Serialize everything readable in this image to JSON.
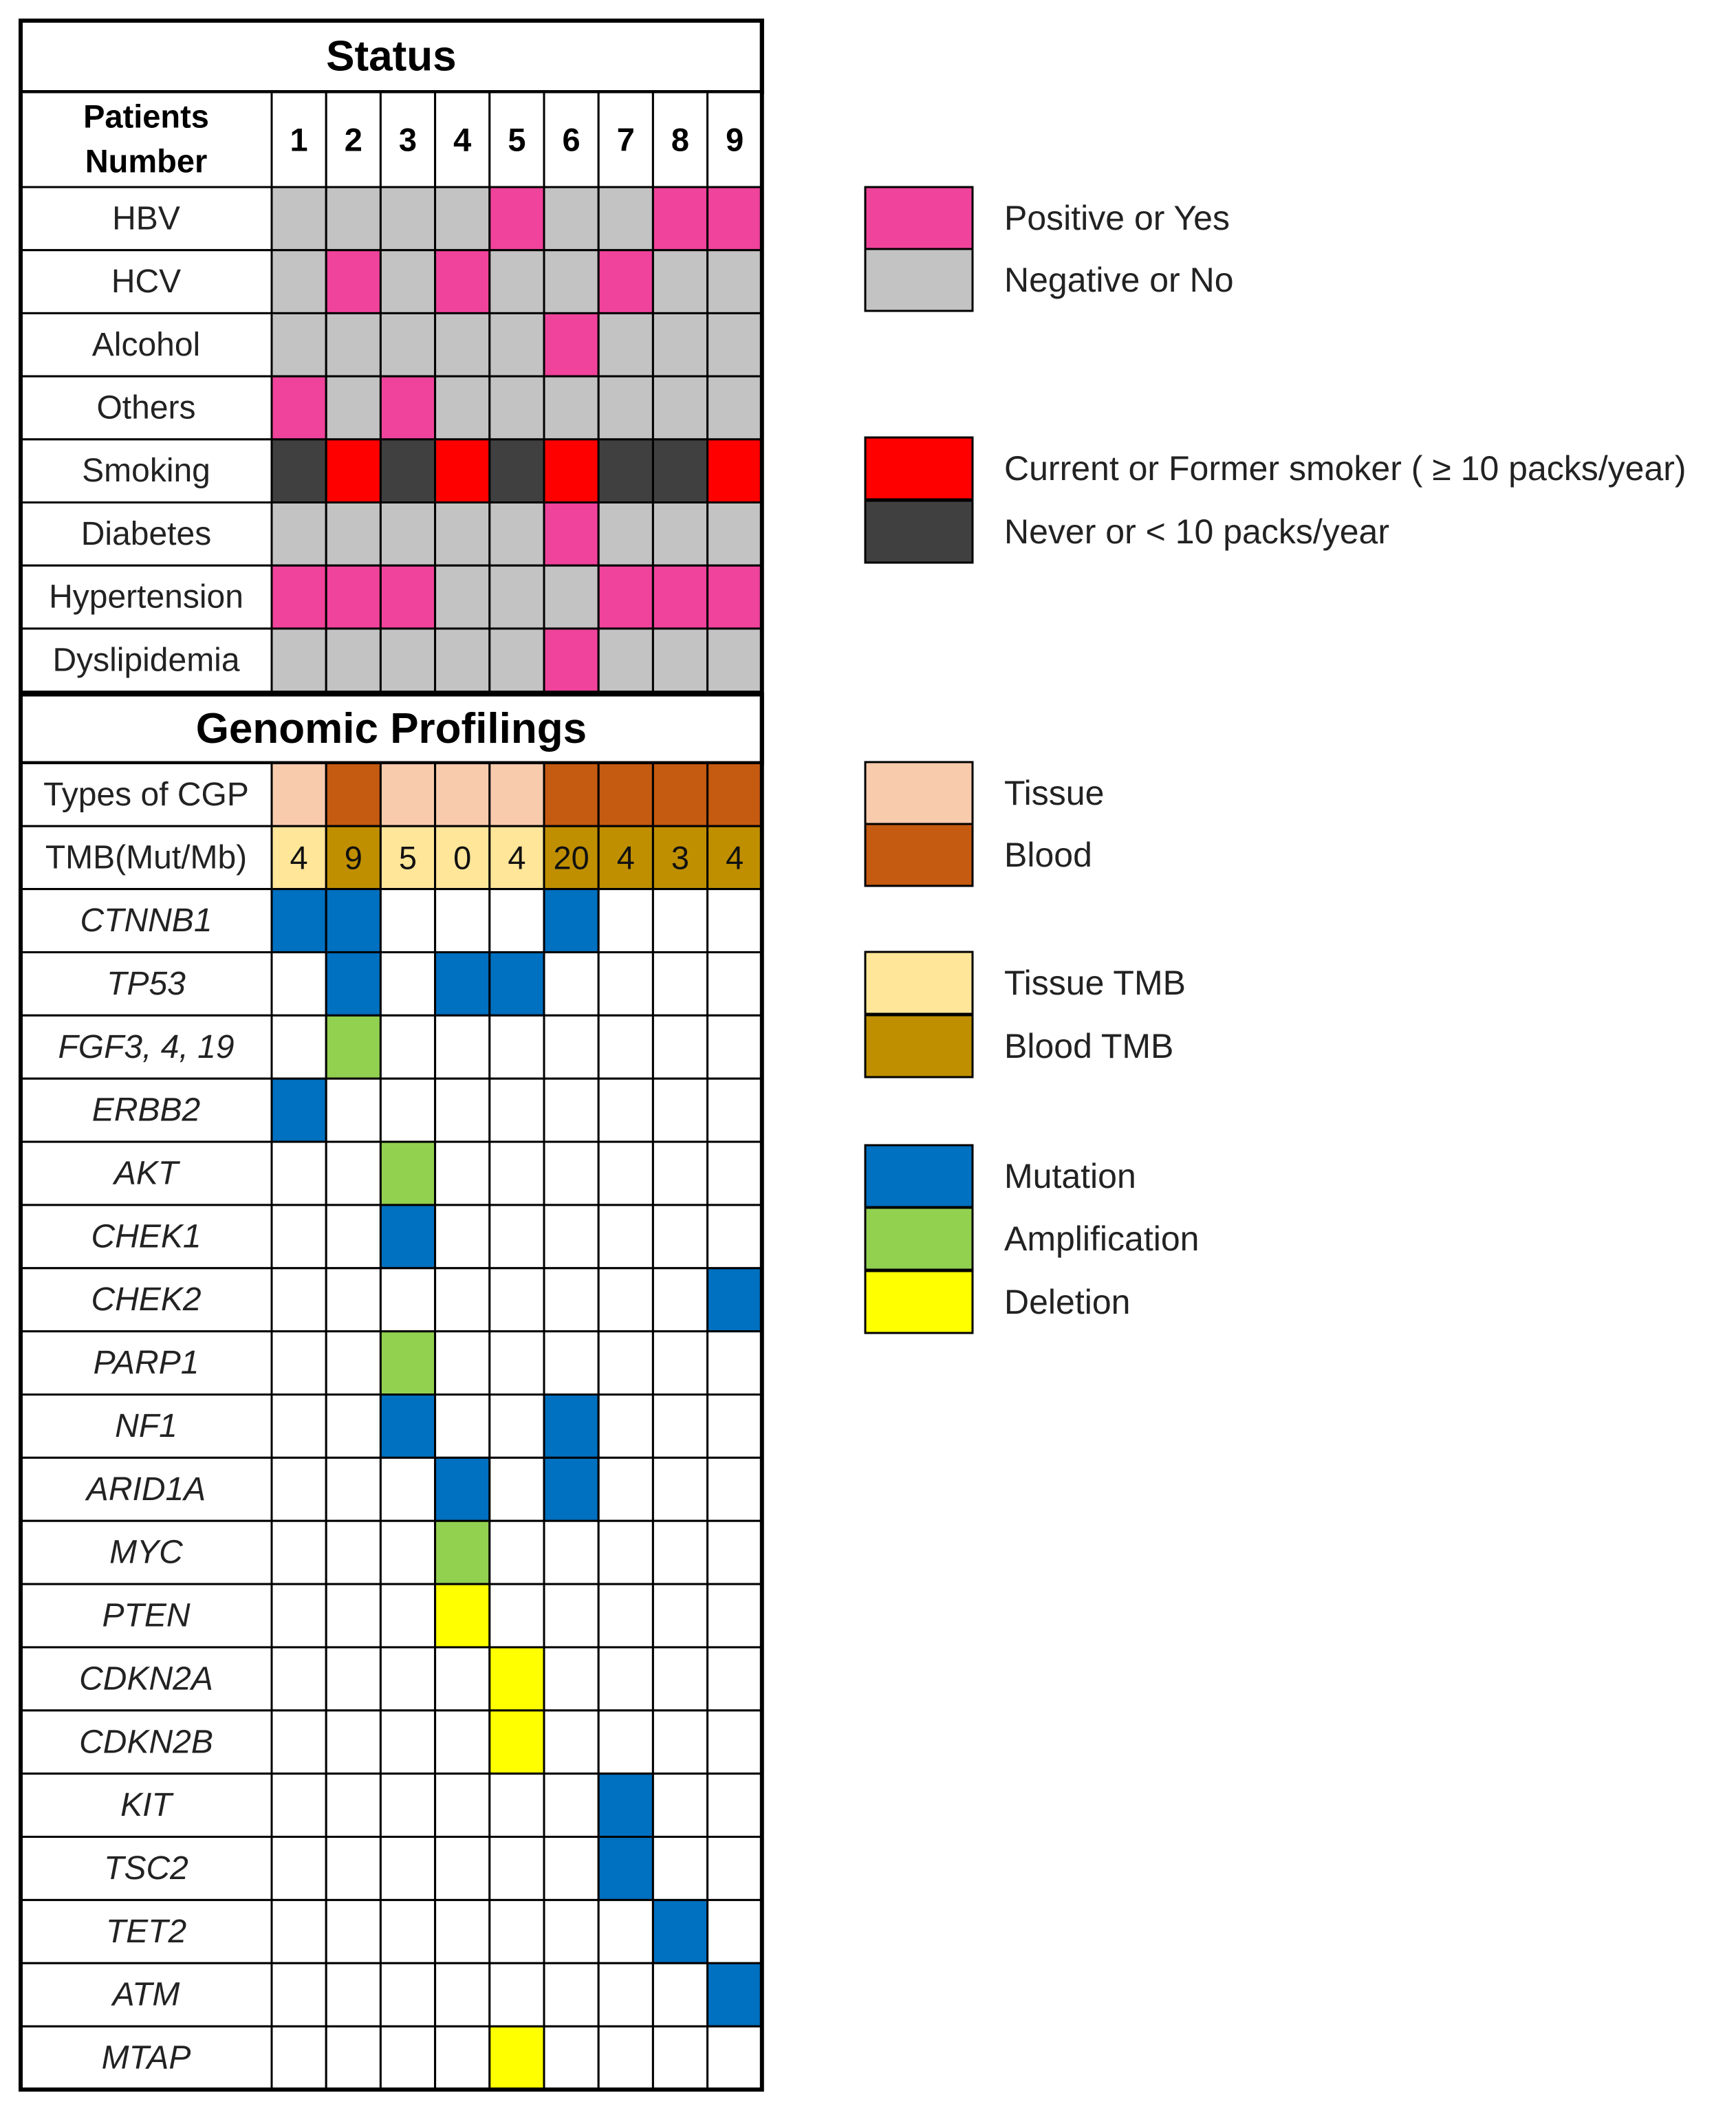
{
  "chart_data": {
    "type": "heatmap",
    "status_title": "Status",
    "genomic_title": "Genomic Profilings",
    "patient_header": "Patients Number",
    "patient_header_lines": [
      "Patients",
      "Number"
    ],
    "patients": [
      "1",
      "2",
      "3",
      "4",
      "5",
      "6",
      "7",
      "8",
      "9"
    ],
    "status_rows": [
      {
        "label": "HBV",
        "values": [
          "neg",
          "neg",
          "neg",
          "neg",
          "pos",
          "neg",
          "neg",
          "pos",
          "pos"
        ]
      },
      {
        "label": "HCV",
        "values": [
          "neg",
          "pos",
          "neg",
          "pos",
          "neg",
          "neg",
          "pos",
          "neg",
          "neg"
        ]
      },
      {
        "label": "Alcohol",
        "values": [
          "neg",
          "neg",
          "neg",
          "neg",
          "neg",
          "pos",
          "neg",
          "neg",
          "neg"
        ]
      },
      {
        "label": "Others",
        "values": [
          "pos",
          "neg",
          "pos",
          "neg",
          "neg",
          "neg",
          "neg",
          "neg",
          "neg"
        ]
      },
      {
        "label": "Smoking",
        "values": [
          "never",
          "current",
          "never",
          "current",
          "never",
          "current",
          "never",
          "never",
          "current"
        ]
      },
      {
        "label": "Diabetes",
        "values": [
          "neg",
          "neg",
          "neg",
          "neg",
          "neg",
          "pos",
          "neg",
          "neg",
          "neg"
        ]
      },
      {
        "label": "Hypertension",
        "values": [
          "pos",
          "pos",
          "pos",
          "neg",
          "neg",
          "neg",
          "pos",
          "pos",
          "pos"
        ]
      },
      {
        "label": "Dyslipidemia",
        "values": [
          "neg",
          "neg",
          "neg",
          "neg",
          "neg",
          "pos",
          "neg",
          "neg",
          "neg"
        ]
      }
    ],
    "cgp_row": {
      "label": "Types of CGP",
      "values": [
        "tissue",
        "blood",
        "tissue",
        "tissue",
        "tissue",
        "blood",
        "blood",
        "blood",
        "blood"
      ]
    },
    "tmb_row": {
      "label": "TMB(Mut/Mb)",
      "values": [
        4,
        9,
        5,
        0,
        4,
        20,
        4,
        3,
        4
      ],
      "types": [
        "tissue",
        "blood",
        "tissue",
        "tissue",
        "tissue",
        "blood",
        "blood",
        "blood",
        "blood"
      ]
    },
    "gene_rows": [
      {
        "label": "CTNNB1",
        "values": [
          "mut",
          "mut",
          "",
          "",
          "",
          "mut",
          "",
          "",
          ""
        ]
      },
      {
        "label": "TP53",
        "values": [
          "",
          "mut",
          "",
          "mut",
          "mut",
          "",
          "",
          "",
          ""
        ]
      },
      {
        "label": "FGF3, 4, 19",
        "values": [
          "",
          "amp",
          "",
          "",
          "",
          "",
          "",
          "",
          ""
        ]
      },
      {
        "label": "ERBB2",
        "values": [
          "mut",
          "",
          "",
          "",
          "",
          "",
          "",
          "",
          ""
        ]
      },
      {
        "label": "AKT",
        "values": [
          "",
          "",
          "amp",
          "",
          "",
          "",
          "",
          "",
          ""
        ]
      },
      {
        "label": "CHEK1",
        "values": [
          "",
          "",
          "mut",
          "",
          "",
          "",
          "",
          "",
          ""
        ]
      },
      {
        "label": "CHEK2",
        "values": [
          "",
          "",
          "",
          "",
          "",
          "",
          "",
          "",
          "mut"
        ]
      },
      {
        "label": "PARP1",
        "values": [
          "",
          "",
          "amp",
          "",
          "",
          "",
          "",
          "",
          ""
        ]
      },
      {
        "label": "NF1",
        "values": [
          "",
          "",
          "mut",
          "",
          "",
          "mut",
          "",
          "",
          ""
        ]
      },
      {
        "label": "ARID1A",
        "values": [
          "",
          "",
          "",
          "mut",
          "",
          "mut",
          "",
          "",
          ""
        ]
      },
      {
        "label": "MYC",
        "values": [
          "",
          "",
          "",
          "amp",
          "",
          "",
          "",
          "",
          ""
        ]
      },
      {
        "label": "PTEN",
        "values": [
          "",
          "",
          "",
          "del",
          "",
          "",
          "",
          "",
          ""
        ]
      },
      {
        "label": "CDKN2A",
        "values": [
          "",
          "",
          "",
          "",
          "del",
          "",
          "",
          "",
          ""
        ]
      },
      {
        "label": "CDKN2B",
        "values": [
          "",
          "",
          "",
          "",
          "del",
          "",
          "",
          "",
          ""
        ]
      },
      {
        "label": "KIT",
        "values": [
          "",
          "",
          "",
          "",
          "",
          "",
          "mut",
          "",
          ""
        ]
      },
      {
        "label": "TSC2",
        "values": [
          "",
          "",
          "",
          "",
          "",
          "",
          "mut",
          "",
          ""
        ]
      },
      {
        "label": "TET2",
        "values": [
          "",
          "",
          "",
          "",
          "",
          "",
          "",
          "mut",
          ""
        ]
      },
      {
        "label": "ATM",
        "values": [
          "",
          "",
          "",
          "",
          "",
          "",
          "",
          "",
          "mut"
        ]
      },
      {
        "label": "MTAP",
        "values": [
          "",
          "",
          "",
          "",
          "del",
          "",
          "",
          "",
          ""
        ]
      }
    ],
    "legend": [
      {
        "key": "pos",
        "label": "Positive or Yes"
      },
      {
        "key": "neg",
        "label": "Negative or No"
      },
      {
        "key": "current",
        "label": "Current or Former smoker ( ≥ 10 packs/year)"
      },
      {
        "key": "never",
        "label": "Never or < 10 packs/year"
      },
      {
        "key": "tissue",
        "label": "Tissue"
      },
      {
        "key": "blood",
        "label": "Blood"
      },
      {
        "key": "tissue_tmb",
        "label": "Tissue TMB"
      },
      {
        "key": "blood_tmb",
        "label": "Blood TMB"
      },
      {
        "key": "mut",
        "label": "Mutation"
      },
      {
        "key": "amp",
        "label": "Amplification"
      },
      {
        "key": "del",
        "label": "Deletion"
      }
    ],
    "colors": {
      "pos": "#f0439b",
      "neg": "#c3c3c3",
      "current": "#ff0000",
      "never": "#404040",
      "tissue": "#f8cbad",
      "blood": "#c55a11",
      "tissue_tmb": "#ffe699",
      "blood_tmb": "#bf8f00",
      "mut": "#0070c0",
      "amp": "#92d050",
      "del": "#ffff00",
      "empty": "#ffffff",
      "grid": "#000000"
    }
  }
}
